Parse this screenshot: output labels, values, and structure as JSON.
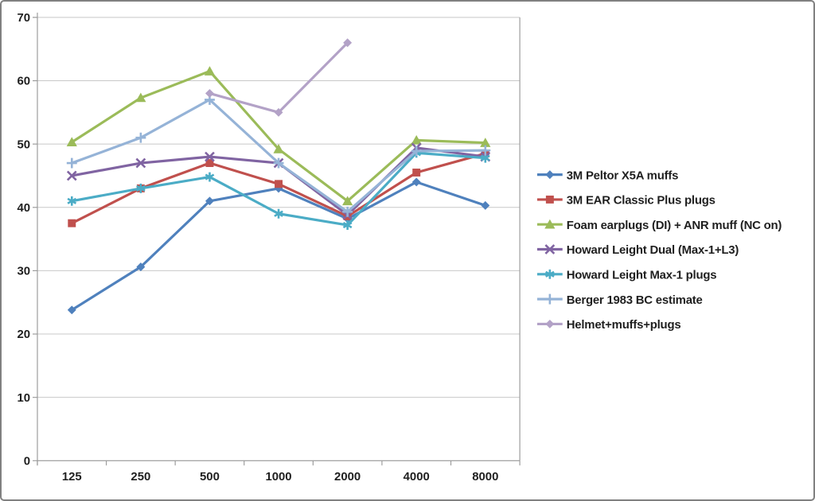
{
  "chart_data": {
    "type": "line",
    "title": "",
    "xlabel": "",
    "ylabel": "",
    "categories": [
      "125",
      "250",
      "500",
      "1000",
      "2000",
      "4000",
      "8000"
    ],
    "y_axis": {
      "min": 0,
      "max": 70,
      "step": 10,
      "tick_labels": [
        "0",
        "10",
        "20",
        "30",
        "40",
        "50",
        "60",
        "70"
      ]
    },
    "grid": "horizontal",
    "legend_position": "right",
    "series": [
      {
        "name": "3M Peltor X5A muffs",
        "color": "#4F81BD",
        "marker": "diamond",
        "values": [
          23.8,
          30.6,
          41,
          43,
          38.2,
          44,
          40.3
        ]
      },
      {
        "name": "3M EAR Classic Plus plugs",
        "color": "#C0504D",
        "marker": "square",
        "values": [
          37.5,
          43,
          47,
          43.7,
          38.6,
          45.5,
          48.5
        ]
      },
      {
        "name": "Foam earplugs (DI) + ANR muff (NC on)",
        "color": "#9BBB59",
        "marker": "triangle",
        "values": [
          50.3,
          57.3,
          61.5,
          49.2,
          41,
          50.6,
          50.2
        ]
      },
      {
        "name": "Howard Leight Dual (Max-1+L3)",
        "color": "#8064A2",
        "marker": "x",
        "values": [
          45,
          47,
          48,
          47,
          38.8,
          49.4,
          48
        ]
      },
      {
        "name": "Howard Leight Max-1 plugs",
        "color": "#4BACC6",
        "marker": "asterisk",
        "values": [
          41,
          43,
          44.8,
          39,
          37.2,
          48.6,
          47.8
        ]
      },
      {
        "name": "Berger 1983 BC estimate",
        "color": "#95B3D7",
        "marker": "plus",
        "values": [
          47,
          51,
          57,
          47,
          39.3,
          48.9,
          49
        ]
      },
      {
        "name": "Helmet+muffs+plugs",
        "color": "#B3A2C7",
        "marker": "diamond",
        "values": [
          null,
          null,
          58,
          55,
          66,
          null,
          null
        ]
      }
    ]
  },
  "colors": {
    "background": "#FFFFFF",
    "frame_border": "#808080",
    "gridline": "#C8C8C8",
    "axis_line": "#9C9C9C",
    "text": "#1F1F1F"
  }
}
